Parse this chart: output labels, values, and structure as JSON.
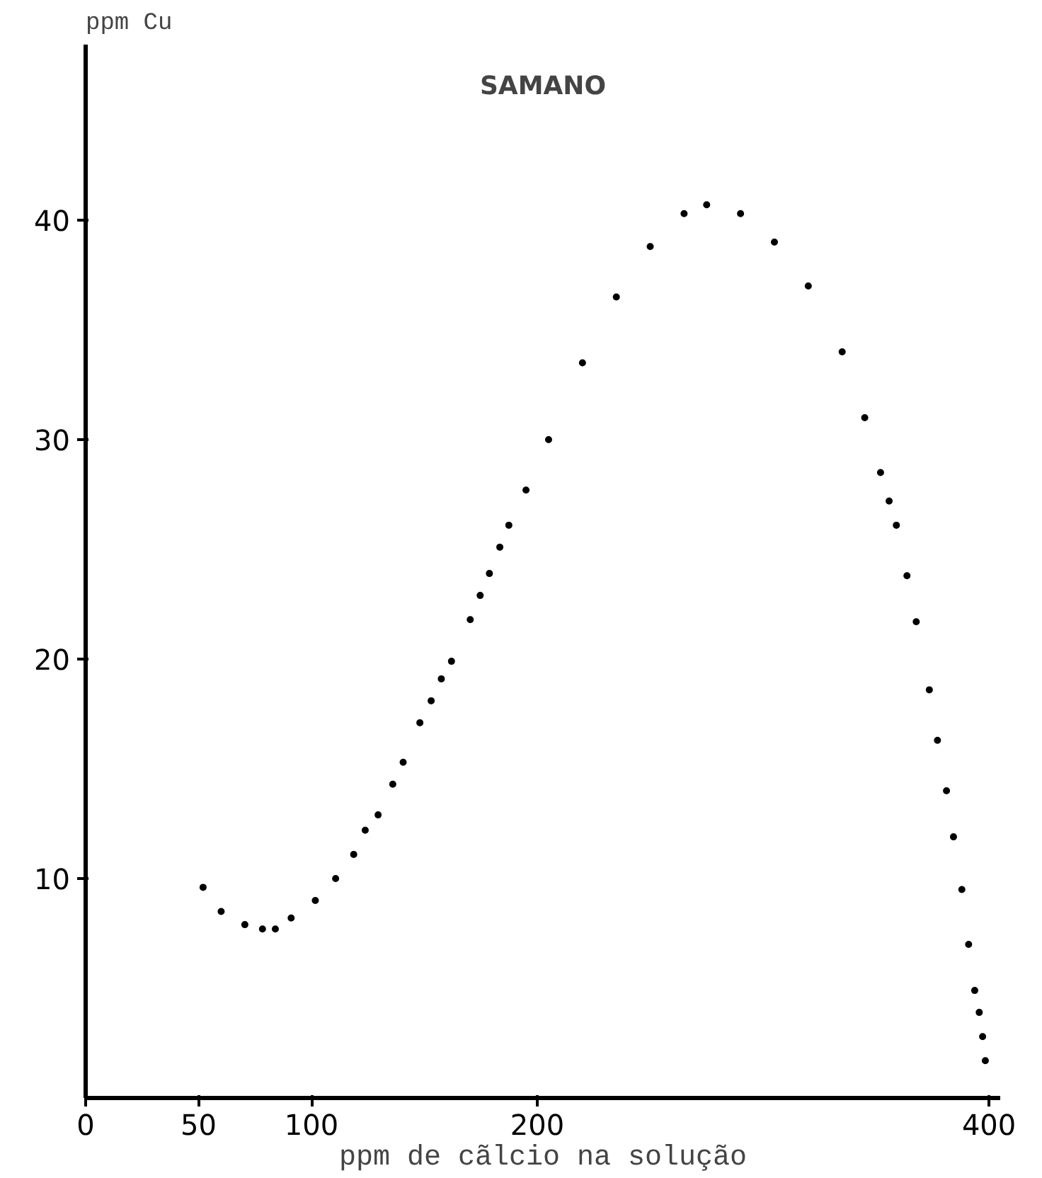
{
  "chart_data": {
    "type": "scatter",
    "title": "SAMANO",
    "xlabel": "ppm de cãlcio na solução",
    "ylabel": "ppm Cu",
    "x": [
      52,
      60,
      70.5,
      78.3,
      84,
      91,
      101.7,
      110.7,
      118.7,
      123.8,
      129.5,
      136,
      140.6,
      148,
      153,
      157.5,
      162,
      170.3,
      174.7,
      178.8,
      183.4,
      187.4,
      195,
      205,
      220,
      235,
      250,
      265,
      275,
      290,
      305,
      320,
      335,
      345,
      352,
      355.8,
      359,
      363.7,
      367.8,
      373.6,
      377.2,
      381.2,
      384.3,
      388,
      391,
      393.7,
      395.7,
      397.2,
      398.4
    ],
    "values": [
      9.6,
      8.5,
      7.9,
      7.7,
      7.7,
      8.2,
      9.0,
      10.0,
      11.1,
      12.2,
      12.9,
      14.3,
      15.3,
      17.1,
      18.1,
      19.1,
      19.9,
      21.8,
      22.9,
      23.9,
      25.1,
      26.1,
      27.7,
      30,
      33.5,
      36.5,
      38.8,
      40.3,
      40.7,
      40.3,
      39,
      37,
      34,
      31,
      28.5,
      27.2,
      26.1,
      23.8,
      21.7,
      18.6,
      16.3,
      14.0,
      11.9,
      9.5,
      7.0,
      4.9,
      3.9,
      2.8,
      1.7
    ],
    "color": "#000000",
    "marker": "circle",
    "grid": false,
    "xlim": [
      0,
      405
    ],
    "ylim": [
      0,
      48
    ],
    "xticks": [
      0,
      50,
      100,
      200,
      400
    ],
    "yticks": [
      10,
      20,
      30,
      40
    ]
  }
}
